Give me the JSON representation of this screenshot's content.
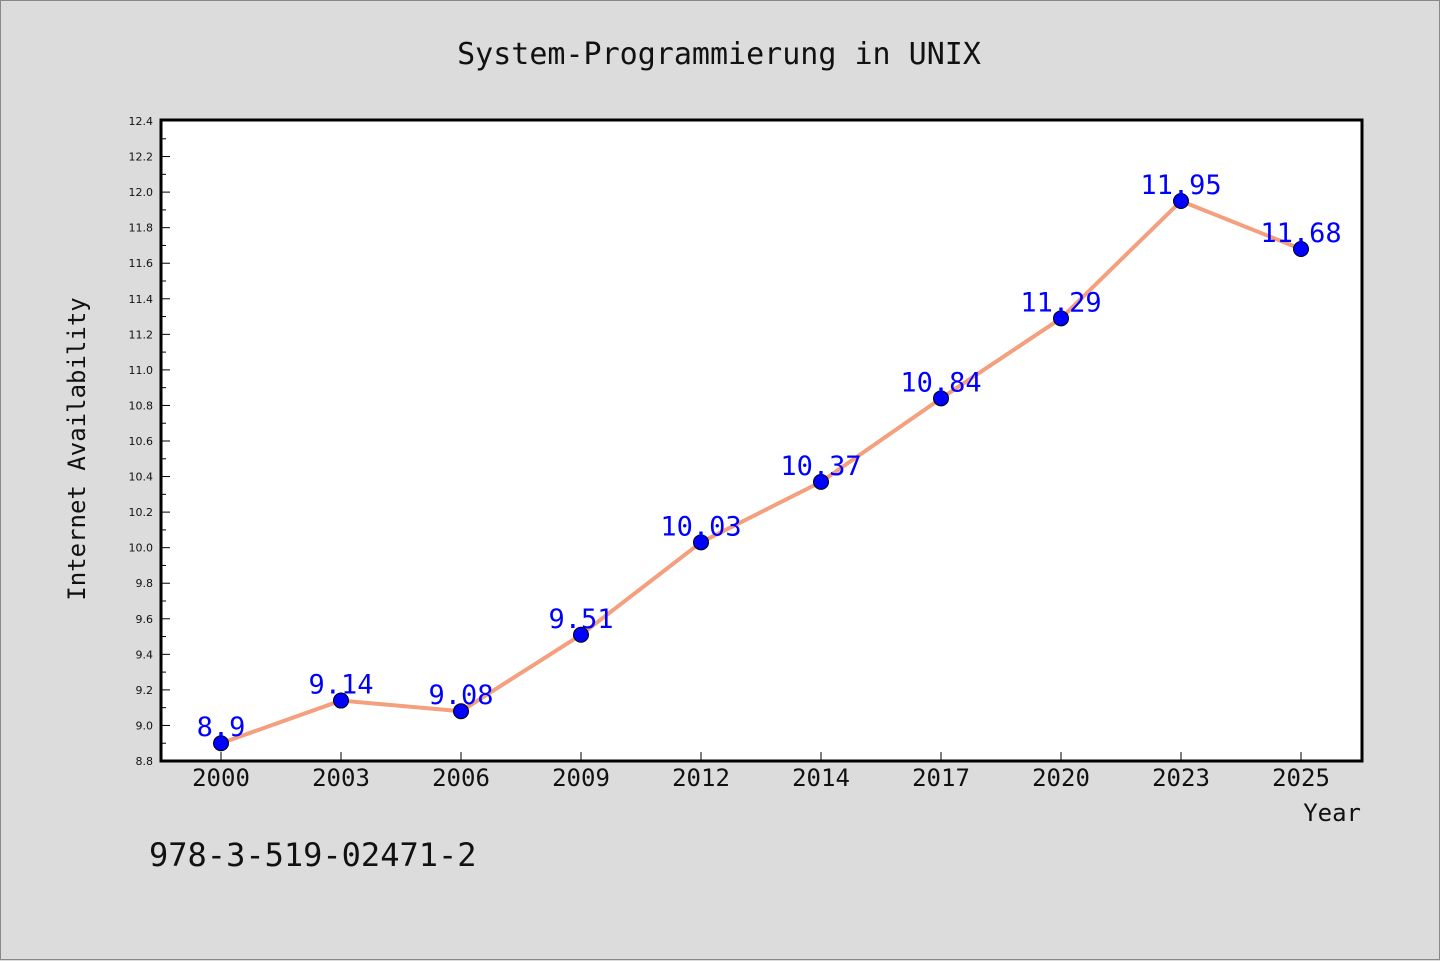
{
  "chart_data": {
    "type": "line",
    "title": "System-Programmierung in UNIX",
    "xlabel": "Year",
    "ylabel": "Internet Availability",
    "categories": [
      "2000",
      "2003",
      "2006",
      "2009",
      "2012",
      "2014",
      "2017",
      "2020",
      "2023",
      "2025"
    ],
    "series": [
      {
        "values": [
          8.9,
          9.14,
          9.08,
          9.51,
          10.03,
          10.37,
          10.84,
          11.29,
          11.95,
          11.68
        ]
      }
    ],
    "data_labels": [
      "8.9",
      "9.14",
      "9.08",
      "9.51",
      "10.03",
      "10.37",
      "10.84",
      "11.29",
      "11.95",
      "11.68"
    ],
    "ylim": [
      8.8,
      12.4
    ],
    "yticks": [
      "8.8",
      "9.0",
      "9.2",
      "9.4",
      "9.6",
      "9.8",
      "10.0",
      "10.2",
      "10.4",
      "10.6",
      "10.8",
      "11.0",
      "11.2",
      "11.4",
      "11.6",
      "11.8",
      "12.0",
      "12.2",
      "12.4"
    ],
    "grid": false,
    "colors": {
      "line": "#f4a07f",
      "marker": "#0000ff",
      "label": "#0000ff"
    }
  },
  "footer": {
    "isbn": "978-3-519-02471-2"
  }
}
